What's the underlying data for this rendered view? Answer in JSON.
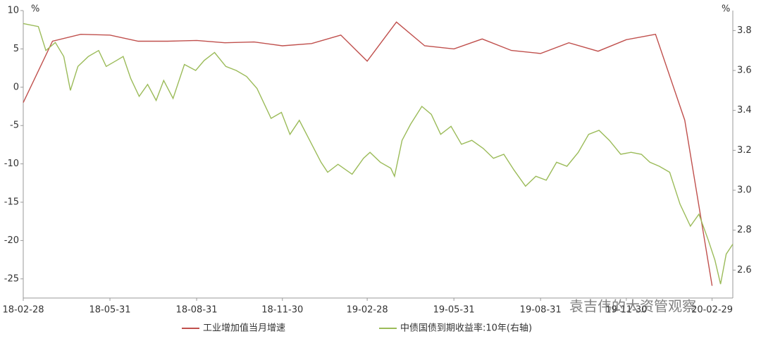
{
  "chart_data": {
    "type": "line",
    "ylabel": "%",
    "y2label": "%",
    "xlim": [
      "2018-02-28",
      "2020-03-22"
    ],
    "xticks": [
      {
        "value": "2018-02-28",
        "label": "18-02-28"
      },
      {
        "value": "2018-05-31",
        "label": "18-05-31"
      },
      {
        "value": "2018-08-31",
        "label": "18-08-31"
      },
      {
        "value": "2018-11-30",
        "label": "18-11-30"
      },
      {
        "value": "2019-02-28",
        "label": "19-02-28"
      },
      {
        "value": "2019-05-31",
        "label": "19-05-31"
      },
      {
        "value": "2019-08-31",
        "label": "19-08-31"
      },
      {
        "value": "2019-11-30",
        "label": "19-11-30"
      },
      {
        "value": "2020-02-29",
        "label": "20-02-29"
      }
    ],
    "ylim": [
      -27.5,
      10
    ],
    "yticks": [
      -25,
      -20,
      -15,
      -10,
      -5,
      0,
      5,
      10
    ],
    "y2lim": [
      2.46,
      3.9
    ],
    "y2ticks": [
      {
        "value": 2.6,
        "label": "2.6"
      },
      {
        "value": 2.8,
        "label": "2.8"
      },
      {
        "value": 3.0,
        "label": "3.0"
      },
      {
        "value": 3.2,
        "label": "3.2"
      },
      {
        "value": 3.4,
        "label": "3.4"
      },
      {
        "value": 3.6,
        "label": "3.6"
      },
      {
        "value": 3.8,
        "label": "3.8"
      }
    ],
    "series": [
      {
        "name": "工业增加值当月增速",
        "color": "#c0504d",
        "x": [
          "2018-02-28",
          "2018-03-31",
          "2018-04-30",
          "2018-05-31",
          "2018-06-30",
          "2018-07-31",
          "2018-08-31",
          "2018-09-30",
          "2018-10-31",
          "2018-11-30",
          "2018-12-31",
          "2019-01-31",
          "2019-02-28",
          "2019-03-31",
          "2019-04-30",
          "2019-05-31",
          "2019-06-30",
          "2019-07-31",
          "2019-08-31",
          "2019-09-30",
          "2019-10-31",
          "2019-11-30",
          "2019-12-31",
          "2020-01-31",
          "2020-02-29"
        ],
        "values": [
          -2.0,
          6.0,
          6.9,
          6.8,
          6.0,
          6.0,
          6.1,
          5.8,
          5.9,
          5.4,
          5.7,
          6.8,
          3.4,
          8.5,
          5.4,
          5.0,
          6.3,
          4.8,
          4.4,
          5.8,
          4.7,
          6.2,
          6.9,
          -4.3,
          -25.9
        ]
      },
      {
        "name": "中债国债到期收益率:10年(右轴)",
        "color": "#9bbb59",
        "axis": "y2",
        "x": [
          "2018-02-28",
          "2018-03-16",
          "2018-03-24",
          "2018-04-03",
          "2018-04-12",
          "2018-04-19",
          "2018-04-27",
          "2018-05-08",
          "2018-05-19",
          "2018-05-27",
          "2018-06-07",
          "2018-06-14",
          "2018-06-22",
          "2018-07-01",
          "2018-07-10",
          "2018-07-19",
          "2018-07-27",
          "2018-08-06",
          "2018-08-18",
          "2018-08-30",
          "2018-09-08",
          "2018-09-19",
          "2018-10-01",
          "2018-10-12",
          "2018-10-23",
          "2018-11-03",
          "2018-11-18",
          "2018-11-29",
          "2018-12-08",
          "2018-12-18",
          "2018-12-29",
          "2019-01-10",
          "2019-01-17",
          "2019-01-28",
          "2019-02-12",
          "2019-02-24",
          "2019-03-03",
          "2019-03-14",
          "2019-03-25",
          "2019-03-29",
          "2019-04-06",
          "2019-04-15",
          "2019-04-27",
          "2019-05-07",
          "2019-05-17",
          "2019-05-28",
          "2019-06-08",
          "2019-06-19",
          "2019-07-01",
          "2019-07-12",
          "2019-07-23",
          "2019-08-03",
          "2019-08-15",
          "2019-08-26",
          "2019-09-06",
          "2019-09-17",
          "2019-09-28",
          "2019-10-10",
          "2019-10-21",
          "2019-11-01",
          "2019-11-12",
          "2019-11-24",
          "2019-12-05",
          "2019-12-16",
          "2019-12-25",
          "2020-01-04",
          "2020-01-15",
          "2020-01-26",
          "2020-02-06",
          "2020-02-15",
          "2020-02-25",
          "2020-03-03",
          "2020-03-09",
          "2020-03-15",
          "2020-03-22"
        ],
        "values": [
          3.835,
          3.82,
          3.7,
          3.74,
          3.67,
          3.5,
          3.62,
          3.67,
          3.7,
          3.62,
          3.65,
          3.67,
          3.56,
          3.47,
          3.53,
          3.45,
          3.55,
          3.46,
          3.63,
          3.6,
          3.65,
          3.69,
          3.62,
          3.6,
          3.57,
          3.51,
          3.36,
          3.39,
          3.28,
          3.35,
          3.25,
          3.14,
          3.09,
          3.13,
          3.08,
          3.16,
          3.19,
          3.14,
          3.11,
          3.07,
          3.25,
          3.33,
          3.42,
          3.38,
          3.28,
          3.32,
          3.23,
          3.25,
          3.21,
          3.16,
          3.18,
          3.1,
          3.02,
          3.07,
          3.05,
          3.14,
          3.12,
          3.19,
          3.28,
          3.3,
          3.25,
          3.18,
          3.19,
          3.18,
          3.14,
          3.12,
          3.09,
          2.93,
          2.82,
          2.88,
          2.75,
          2.65,
          2.53,
          2.68,
          2.73
        ]
      }
    ],
    "watermark": "袁吉伟的大资管观察"
  }
}
